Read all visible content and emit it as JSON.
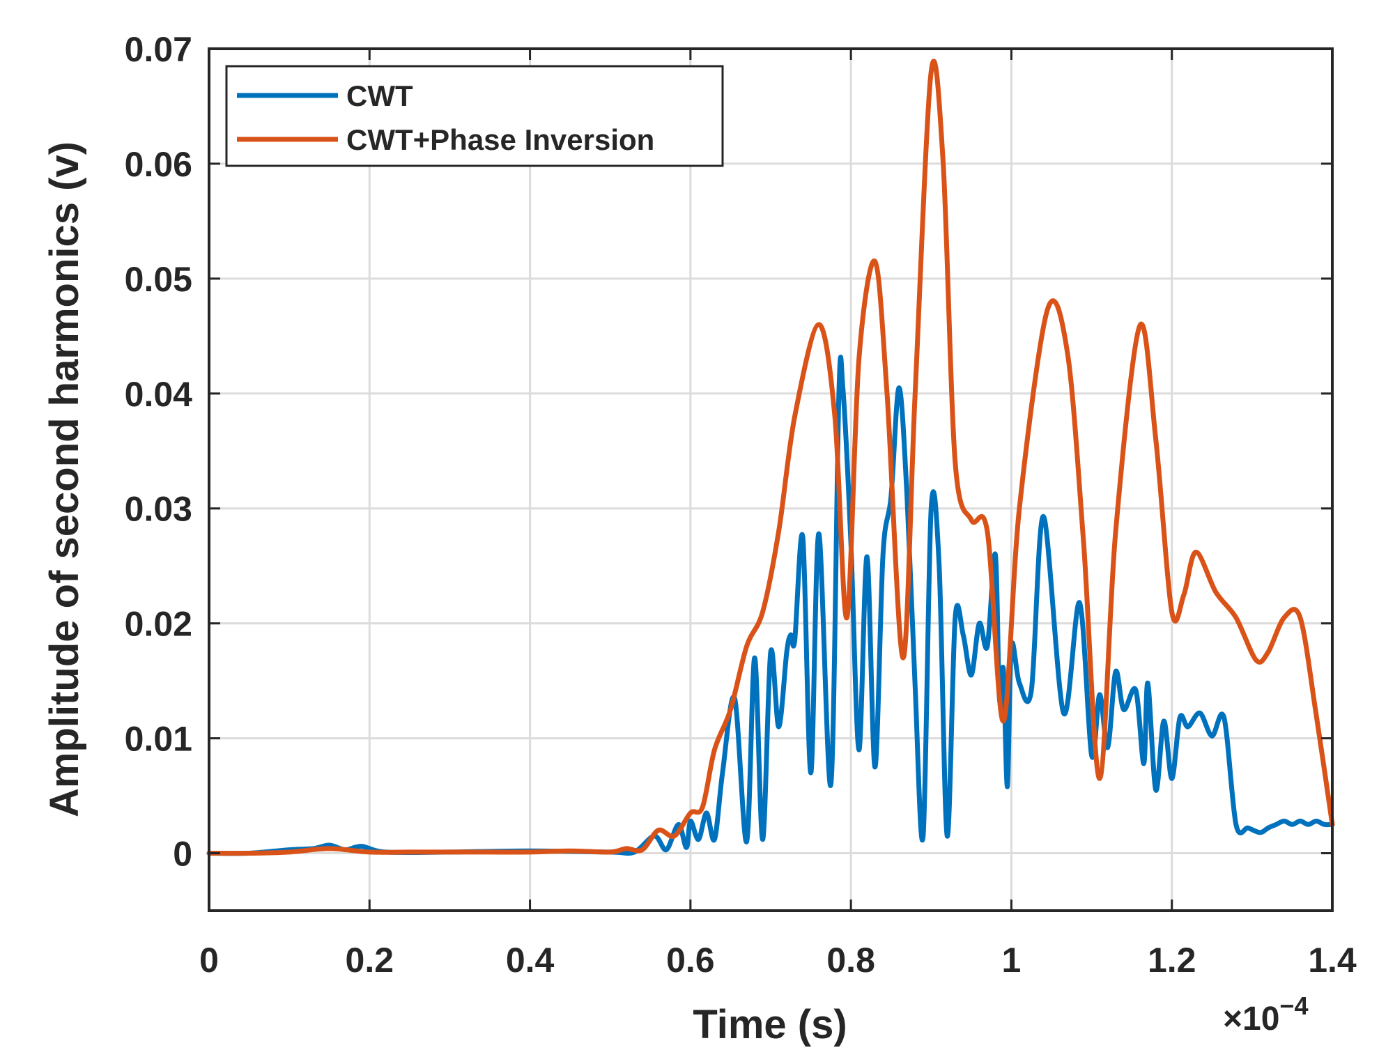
{
  "chart_data": {
    "type": "line",
    "title": "",
    "xlabel": "Time (s)",
    "ylabel": "Amplitude of second harmonics (v)",
    "x_exponent_base": "×10",
    "x_exponent_power": "−4",
    "xlim": [
      0,
      1.4
    ],
    "ylim": [
      -0.005,
      0.07
    ],
    "grid": true,
    "legend_position": "top-left",
    "x_ticks": [
      0,
      0.2,
      0.4,
      0.6,
      0.8,
      1.0,
      1.2,
      1.4
    ],
    "x_tick_labels": [
      "0",
      "0.2",
      "0.4",
      "0.6",
      "0.8",
      "1",
      "1.2",
      "1.4"
    ],
    "y_ticks": [
      0,
      0.01,
      0.02,
      0.03,
      0.04,
      0.05,
      0.06,
      0.07
    ],
    "y_tick_labels": [
      "0",
      "0.01",
      "0.02",
      "0.03",
      "0.04",
      "0.05",
      "0.06",
      "0.07"
    ],
    "series": [
      {
        "name": "CWT",
        "color": "#0072bd",
        "x": [
          0,
          0.05,
          0.1,
          0.13,
          0.15,
          0.17,
          0.19,
          0.22,
          0.3,
          0.4,
          0.5,
          0.53,
          0.555,
          0.57,
          0.585,
          0.595,
          0.6,
          0.61,
          0.62,
          0.63,
          0.64,
          0.655,
          0.67,
          0.68,
          0.69,
          0.7,
          0.71,
          0.72,
          0.725,
          0.73,
          0.74,
          0.75,
          0.76,
          0.775,
          0.785,
          0.79,
          0.8,
          0.81,
          0.82,
          0.83,
          0.84,
          0.85,
          0.86,
          0.87,
          0.88,
          0.89,
          0.9,
          0.91,
          0.92,
          0.93,
          0.94,
          0.95,
          0.96,
          0.97,
          0.98,
          0.985,
          0.99,
          0.995,
          1.0,
          1.01,
          1.025,
          1.04,
          1.065,
          1.085,
          1.1,
          1.11,
          1.12,
          1.13,
          1.14,
          1.155,
          1.165,
          1.17,
          1.18,
          1.19,
          1.2,
          1.21,
          1.22,
          1.235,
          1.25,
          1.265,
          1.28,
          1.295,
          1.31,
          1.32,
          1.33,
          1.34,
          1.35,
          1.36,
          1.37,
          1.38,
          1.39,
          1.4
        ],
        "y": [
          0,
          0,
          0.0003,
          0.0004,
          0.0007,
          0.0003,
          0.0006,
          0.0001,
          0.0001,
          0.0002,
          0.0001,
          0.0001,
          0.0015,
          0.0003,
          0.0025,
          0.0005,
          0.0028,
          0.0012,
          0.0035,
          0.0012,
          0.007,
          0.0135,
          0.001,
          0.017,
          0.0012,
          0.0175,
          0.011,
          0.0175,
          0.019,
          0.0185,
          0.0275,
          0.007,
          0.0278,
          0.006,
          0.04,
          0.0405,
          0.027,
          0.009,
          0.0258,
          0.0075,
          0.026,
          0.031,
          0.0405,
          0.031,
          0.0145,
          0.0015,
          0.03,
          0.025,
          0.0015,
          0.0205,
          0.019,
          0.0155,
          0.02,
          0.018,
          0.026,
          0.0135,
          0.016,
          0.0058,
          0.018,
          0.0148,
          0.0142,
          0.0293,
          0.0122,
          0.0218,
          0.0085,
          0.0138,
          0.0092,
          0.0158,
          0.0125,
          0.0142,
          0.0078,
          0.0148,
          0.0055,
          0.0115,
          0.0065,
          0.0118,
          0.011,
          0.0122,
          0.0102,
          0.0118,
          0.0025,
          0.0022,
          0.0018,
          0.0022,
          0.0025,
          0.0028,
          0.0025,
          0.0028,
          0.0025,
          0.0028,
          0.0025,
          0.0025
        ]
      },
      {
        "name": "CWT+Phase Inversion",
        "color": "#d95319",
        "x": [
          0,
          0.05,
          0.1,
          0.15,
          0.2,
          0.25,
          0.3,
          0.35,
          0.4,
          0.45,
          0.5,
          0.52,
          0.54,
          0.56,
          0.58,
          0.6,
          0.615,
          0.63,
          0.65,
          0.67,
          0.69,
          0.71,
          0.73,
          0.76,
          0.78,
          0.795,
          0.81,
          0.83,
          0.845,
          0.865,
          0.88,
          0.9,
          0.915,
          0.93,
          0.95,
          0.97,
          0.99,
          1.01,
          1.045,
          1.07,
          1.09,
          1.11,
          1.13,
          1.16,
          1.18,
          1.2,
          1.215,
          1.23,
          1.255,
          1.28,
          1.305,
          1.32,
          1.34,
          1.36,
          1.38,
          1.4
        ],
        "y": [
          0,
          0,
          0.0001,
          0.0004,
          0.0001,
          0.0001,
          0.0001,
          0.0001,
          0.0001,
          0.0002,
          0.0001,
          0.0004,
          0.0003,
          0.002,
          0.0015,
          0.0035,
          0.004,
          0.009,
          0.0125,
          0.018,
          0.021,
          0.028,
          0.038,
          0.046,
          0.038,
          0.0205,
          0.043,
          0.0515,
          0.04,
          0.017,
          0.04,
          0.068,
          0.06,
          0.034,
          0.029,
          0.028,
          0.0115,
          0.03,
          0.0473,
          0.0435,
          0.027,
          0.0065,
          0.028,
          0.0459,
          0.036,
          0.021,
          0.0225,
          0.0262,
          0.0227,
          0.0205,
          0.0168,
          0.0175,
          0.0205,
          0.0205,
          0.012,
          0.0025
        ]
      }
    ]
  }
}
